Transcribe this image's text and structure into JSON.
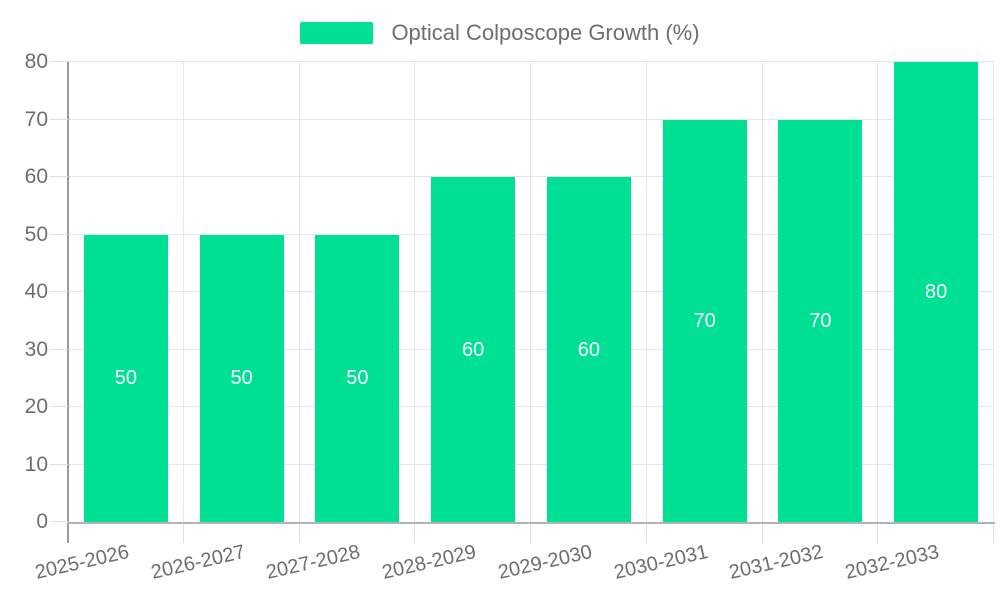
{
  "chart_data": {
    "type": "bar",
    "title": "Optical Colposcope Growth (%)",
    "categories": [
      "2025-2026",
      "2026-2027",
      "2027-2028",
      "2028-2029",
      "2029-2030",
      "2030-2031",
      "2031-2032",
      "2032-2033"
    ],
    "series": [
      {
        "name": "Optical Colposcope Growth (%)",
        "values": [
          50,
          50,
          50,
          60,
          60,
          70,
          70,
          80
        ]
      }
    ],
    "value_labels": [
      50,
      50,
      50,
      60,
      60,
      70,
      70,
      80
    ],
    "ylim": [
      0,
      80
    ],
    "yticks": [
      0,
      10,
      20,
      30,
      40,
      50,
      60,
      70,
      80
    ],
    "grid": true,
    "legend_position": "top",
    "value_label_position": "inside-center",
    "x_label_rotation_deg": -13,
    "colors": {
      "bar": "#00E094",
      "value_label": "#FFFFFF",
      "axis_text": "#6E6E6E",
      "legend_text": "#6E6E6E",
      "gridline": "#E6E6E6",
      "tick": "#E0E0E0",
      "x_axis_line": "#B3B3B3",
      "y_axis_line": "#9A9A9A",
      "background": "#FFFFFF"
    }
  }
}
